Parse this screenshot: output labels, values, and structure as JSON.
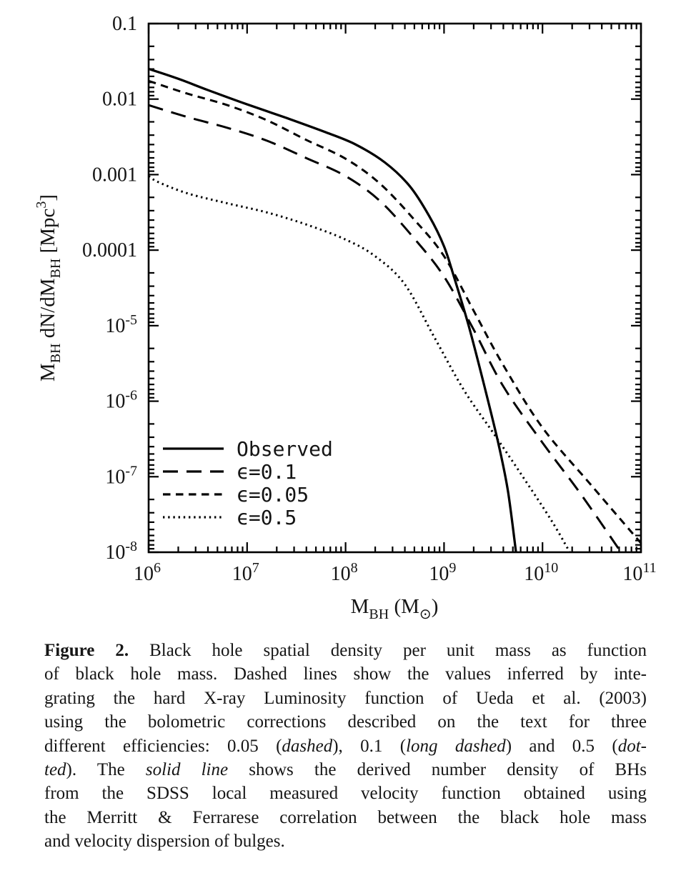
{
  "figure": {
    "x_axis": {
      "title_segments": [
        {
          "t": "M"
        },
        {
          "t": "BH",
          "sub": true
        },
        {
          "t": " (M"
        },
        {
          "t": "⊙",
          "sub": true
        },
        {
          "t": ")"
        }
      ],
      "tick_labels": [
        {
          "v": 6,
          "base": "10",
          "exp": "6"
        },
        {
          "v": 7,
          "base": "10",
          "exp": "7"
        },
        {
          "v": 8,
          "base": "10",
          "exp": "8"
        },
        {
          "v": 9,
          "base": "10",
          "exp": "9"
        },
        {
          "v": 10,
          "base": "10",
          "exp": "10"
        },
        {
          "v": 11,
          "base": "10",
          "exp": "11"
        }
      ]
    },
    "y_axis": {
      "title_segments": [
        {
          "t": "M"
        },
        {
          "t": "BH",
          "sub": true
        },
        {
          "t": " dN/dM"
        },
        {
          "t": "BH",
          "sub": true
        },
        {
          "t": " [Mpc"
        },
        {
          "t": "3",
          "sup": true
        },
        {
          "t": "]"
        }
      ],
      "tick_labels": [
        {
          "v": -1,
          "text": "0.1"
        },
        {
          "v": -2,
          "text": "0.01"
        },
        {
          "v": -3,
          "text": "0.001"
        },
        {
          "v": -4,
          "text": "0.0001"
        },
        {
          "v": -5,
          "base": "10",
          "exp": "-5"
        },
        {
          "v": -6,
          "base": "10",
          "exp": "-6"
        },
        {
          "v": -7,
          "base": "10",
          "exp": "-7"
        },
        {
          "v": -8,
          "base": "10",
          "exp": "-8"
        }
      ]
    },
    "legend": {
      "entries": [
        {
          "label": "Observed",
          "line_style": "solid"
        },
        {
          "label": "ϵ=0.1",
          "line_style": "long-dashed"
        },
        {
          "label": "ϵ=0.05",
          "line_style": "short-dashed"
        },
        {
          "label": "ϵ=0.5",
          "line_style": "dotted"
        }
      ]
    },
    "line_color": "#000000"
  },
  "chart_data": {
    "type": "line",
    "title": "",
    "xlabel": "M_BH (M_sun)",
    "ylabel": "M_BH dN/dM_BH [Mpc^3]",
    "x_scale": "log",
    "y_scale": "log",
    "xlim": [
      1000000.0,
      100000000000.0
    ],
    "ylim": [
      1e-08,
      0.1
    ],
    "grid": false,
    "legend_position": "lower-left",
    "series": [
      {
        "name": "Observed",
        "line_style": "solid",
        "points_logM_logPhi": [
          [
            6.0,
            -1.6
          ],
          [
            6.3,
            -1.73
          ],
          [
            6.6,
            -1.88
          ],
          [
            7.0,
            -2.07
          ],
          [
            7.4,
            -2.25
          ],
          [
            7.8,
            -2.44
          ],
          [
            8.1,
            -2.6
          ],
          [
            8.4,
            -2.84
          ],
          [
            8.65,
            -3.15
          ],
          [
            8.85,
            -3.55
          ],
          [
            9.0,
            -3.95
          ],
          [
            9.1,
            -4.35
          ],
          [
            9.25,
            -5.0
          ],
          [
            9.4,
            -5.75
          ],
          [
            9.55,
            -6.55
          ],
          [
            9.65,
            -7.2
          ],
          [
            9.74,
            -8.1
          ]
        ]
      },
      {
        "name": "ϵ=0.1",
        "line_style": "long-dashed",
        "points_logM_logPhi": [
          [
            6.0,
            -2.08
          ],
          [
            6.4,
            -2.24
          ],
          [
            6.8,
            -2.38
          ],
          [
            7.2,
            -2.55
          ],
          [
            7.6,
            -2.78
          ],
          [
            8.0,
            -3.02
          ],
          [
            8.35,
            -3.35
          ],
          [
            8.7,
            -3.85
          ],
          [
            9.0,
            -4.35
          ],
          [
            9.3,
            -5.05
          ],
          [
            9.6,
            -5.8
          ],
          [
            10.0,
            -6.55
          ],
          [
            10.4,
            -7.25
          ],
          [
            10.85,
            -8.1
          ]
        ]
      },
      {
        "name": "ϵ=0.05",
        "line_style": "short-dashed",
        "points_logM_logPhi": [
          [
            6.0,
            -1.76
          ],
          [
            6.4,
            -1.93
          ],
          [
            6.8,
            -2.08
          ],
          [
            7.2,
            -2.28
          ],
          [
            7.6,
            -2.54
          ],
          [
            8.0,
            -2.79
          ],
          [
            8.35,
            -3.12
          ],
          [
            8.7,
            -3.6
          ],
          [
            9.0,
            -4.08
          ],
          [
            9.3,
            -4.8
          ],
          [
            9.6,
            -5.52
          ],
          [
            10.0,
            -6.35
          ],
          [
            10.5,
            -7.12
          ],
          [
            11.0,
            -7.88
          ]
        ]
      },
      {
        "name": "ϵ=0.5",
        "line_style": "dotted",
        "points_logM_logPhi": [
          [
            6.0,
            -3.02
          ],
          [
            6.1,
            -3.1
          ],
          [
            6.4,
            -3.25
          ],
          [
            6.8,
            -3.38
          ],
          [
            7.2,
            -3.5
          ],
          [
            7.6,
            -3.66
          ],
          [
            8.0,
            -3.86
          ],
          [
            8.3,
            -4.08
          ],
          [
            8.6,
            -4.45
          ],
          [
            8.9,
            -5.15
          ],
          [
            9.2,
            -5.85
          ],
          [
            9.5,
            -6.42
          ],
          [
            9.8,
            -7.0
          ],
          [
            10.1,
            -7.6
          ],
          [
            10.32,
            -8.1
          ]
        ]
      }
    ]
  },
  "caption": {
    "lines": [
      [
        {
          "t": "Figure 2.",
          "b": true
        },
        {
          "t": " Black hole spatial density per unit mass as function"
        }
      ],
      [
        {
          "t": "of black hole mass. Dashed lines show the values inferred by inte-"
        }
      ],
      [
        {
          "t": "grating the hard X-ray Luminosity function of Ueda et al. (2003)"
        }
      ],
      [
        {
          "t": "using the bolometric corrections described on the text for three"
        }
      ],
      [
        {
          "t": "different efficiencies: 0.05 ("
        },
        {
          "t": "dashed",
          "i": true
        },
        {
          "t": "), 0.1 ("
        },
        {
          "t": "long dashed",
          "i": true
        },
        {
          "t": ") and 0.5 ("
        },
        {
          "t": "dot-",
          "i": true
        }
      ],
      [
        {
          "t": "ted",
          "i": true
        },
        {
          "t": "). The "
        },
        {
          "t": "solid line",
          "i": true
        },
        {
          "t": " shows the derived number density of BHs"
        }
      ],
      [
        {
          "t": "from the SDSS local measured velocity function obtained using"
        }
      ],
      [
        {
          "t": "the Merritt & Ferrarese correlation between the black hole mass"
        }
      ],
      [
        {
          "t": "and velocity dispersion of bulges.",
          "last": true
        }
      ]
    ]
  }
}
